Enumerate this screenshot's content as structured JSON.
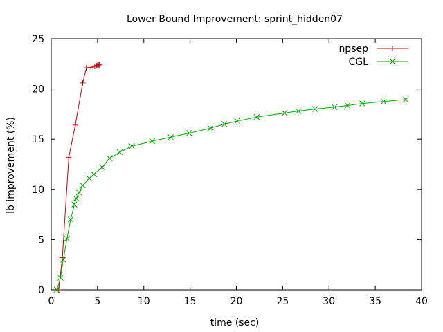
{
  "chart_data": {
    "type": "line",
    "title": "Lower Bound Improvement: sprint_hidden07",
    "xlabel": "time (sec)",
    "ylabel": "lb improvement (%)",
    "xlim": [
      0,
      40
    ],
    "ylim": [
      0,
      25
    ],
    "xticks": [
      "0",
      "5",
      "10",
      "15",
      "20",
      "25",
      "30",
      "35",
      "40"
    ],
    "yticks": [
      "0",
      "5",
      "10",
      "15",
      "20",
      "25"
    ],
    "grid": false,
    "legend_position": "top-right",
    "series": [
      {
        "name": "npsep",
        "color": "#cc0000",
        "marker": "plus",
        "points": [
          {
            "x": 0.8,
            "y": 0.0
          },
          {
            "x": 1.2,
            "y": 3.2
          },
          {
            "x": 1.9,
            "y": 13.2
          },
          {
            "x": 2.6,
            "y": 16.4
          },
          {
            "x": 3.4,
            "y": 20.6
          },
          {
            "x": 3.8,
            "y": 22.1
          },
          {
            "x": 4.3,
            "y": 22.15
          },
          {
            "x": 4.7,
            "y": 22.25
          },
          {
            "x": 4.9,
            "y": 22.3
          },
          {
            "x": 5.0,
            "y": 22.35
          },
          {
            "x": 5.1,
            "y": 22.4
          },
          {
            "x": 5.2,
            "y": 22.4
          }
        ]
      },
      {
        "name": "CGL",
        "color": "#00aa00",
        "marker": "cross",
        "points": [
          {
            "x": 0.6,
            "y": 0.0
          },
          {
            "x": 1.0,
            "y": 1.2
          },
          {
            "x": 1.3,
            "y": 3.0
          },
          {
            "x": 1.7,
            "y": 5.1
          },
          {
            "x": 2.1,
            "y": 7.0
          },
          {
            "x": 2.5,
            "y": 8.5
          },
          {
            "x": 2.7,
            "y": 9.1
          },
          {
            "x": 3.0,
            "y": 9.7
          },
          {
            "x": 3.4,
            "y": 10.4
          },
          {
            "x": 4.1,
            "y": 11.1
          },
          {
            "x": 4.6,
            "y": 11.5
          },
          {
            "x": 5.5,
            "y": 12.2
          },
          {
            "x": 6.3,
            "y": 13.1
          },
          {
            "x": 7.4,
            "y": 13.7
          },
          {
            "x": 8.7,
            "y": 14.3
          },
          {
            "x": 10.9,
            "y": 14.8
          },
          {
            "x": 12.9,
            "y": 15.2
          },
          {
            "x": 14.9,
            "y": 15.6
          },
          {
            "x": 17.2,
            "y": 16.1
          },
          {
            "x": 18.7,
            "y": 16.5
          },
          {
            "x": 20.1,
            "y": 16.8
          },
          {
            "x": 22.2,
            "y": 17.2
          },
          {
            "x": 25.2,
            "y": 17.6
          },
          {
            "x": 26.7,
            "y": 17.8
          },
          {
            "x": 28.5,
            "y": 18.0
          },
          {
            "x": 30.6,
            "y": 18.2
          },
          {
            "x": 32.0,
            "y": 18.35
          },
          {
            "x": 33.6,
            "y": 18.55
          },
          {
            "x": 35.9,
            "y": 18.75
          },
          {
            "x": 38.3,
            "y": 18.95
          }
        ]
      }
    ]
  }
}
